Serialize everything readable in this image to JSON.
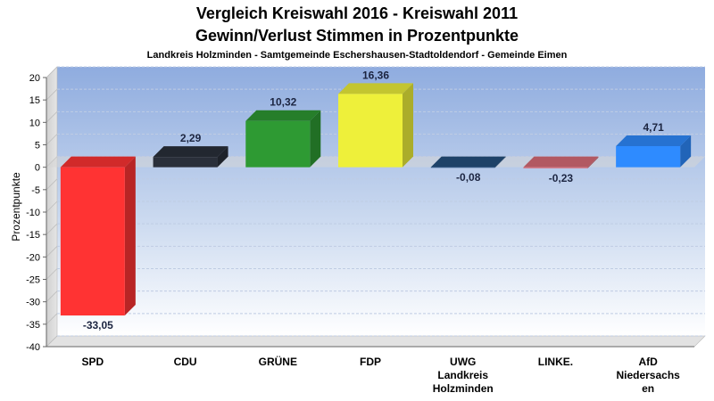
{
  "chart_data": {
    "type": "bar",
    "title_line1": "Vergleich Kreiswahl 2016 - Kreiswahl 2011",
    "title_line2": "Gewinn/Verlust Stimmen in Prozentpunkte",
    "subtitle": "Landkreis Holzminden - Samtgemeinde Eschershausen-Stadtoldendorf - Gemeinde Eimen",
    "ylabel": "Prozentpunkte",
    "xlabel": "",
    "ylim": [
      -40,
      20
    ],
    "yticks": [
      20,
      15,
      10,
      5,
      0,
      -5,
      -10,
      -15,
      -20,
      -25,
      -30,
      -35,
      -40
    ],
    "grid": true,
    "categories": [
      [
        "SPD"
      ],
      [
        "CDU"
      ],
      [
        "GRÜNE"
      ],
      [
        "FDP"
      ],
      [
        "UWG",
        "Landkreis",
        "Holzminden"
      ],
      [
        "LINKE."
      ],
      [
        "AfD",
        "Niedersachs",
        "en"
      ]
    ],
    "values": [
      -33.05,
      2.29,
      10.32,
      16.36,
      -0.08,
      -0.23,
      4.71
    ],
    "value_labels": [
      "-33,05",
      "2,29",
      "10,32",
      "16,36",
      "-0,08",
      "-0,23",
      "4,71"
    ],
    "colors": [
      "#ff3333",
      "#2a2f3a",
      "#2e9a33",
      "#eef03a",
      "#25507f",
      "#d96d78",
      "#2e8bff"
    ]
  }
}
